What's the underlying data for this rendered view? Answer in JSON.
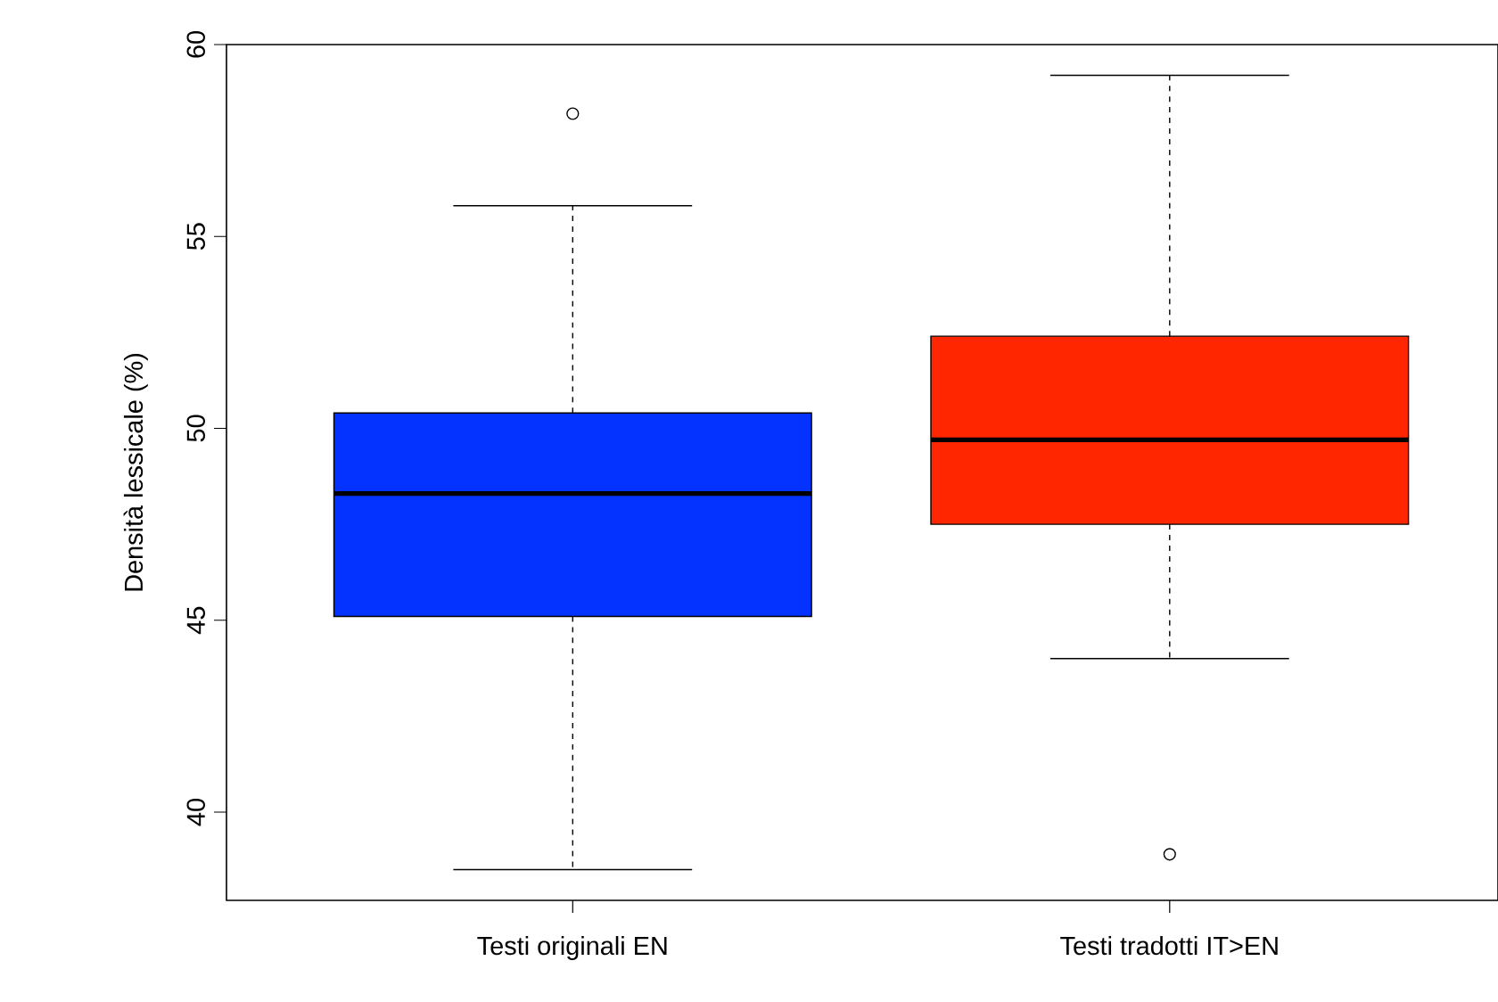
{
  "chart_data": {
    "type": "box",
    "ylabel": "Densità lessicale (%)",
    "categories": [
      "Testi originali EN",
      "Testi tradotti IT>EN"
    ],
    "colors": [
      "#0433ff",
      "#ff2600"
    ],
    "boxes": [
      {
        "low": 38.5,
        "q1": 45.1,
        "median": 48.3,
        "q3": 50.4,
        "high": 55.8,
        "outliers": [
          58.2
        ]
      },
      {
        "low": 44.0,
        "q1": 47.5,
        "median": 49.7,
        "q3": 52.4,
        "high": 59.2,
        "outliers": [
          38.9
        ]
      }
    ],
    "ylim": [
      37.7,
      60
    ],
    "yticks": [
      40,
      45,
      50,
      55,
      60
    ]
  }
}
